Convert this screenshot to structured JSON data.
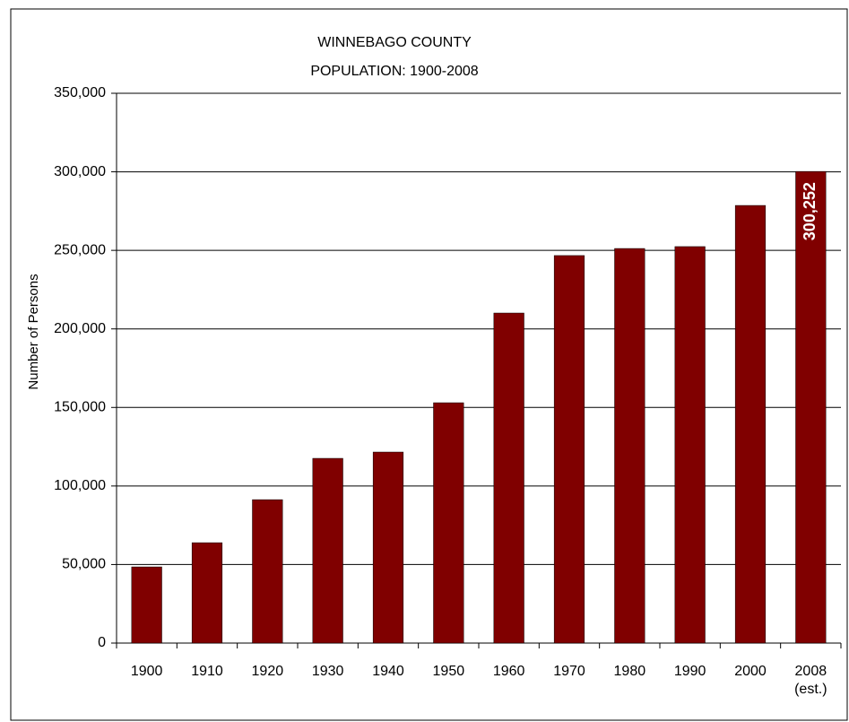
{
  "chart_data": {
    "type": "bar",
    "title": "WINNEBAGO COUNTY",
    "subtitle": "POPULATION:  1900-2008",
    "y_label": "Number of Persons",
    "categories": [
      "1900",
      "1910",
      "1920",
      "1930",
      "1940",
      "1950",
      "1960",
      "1970",
      "1980",
      "1990",
      "2000",
      "2008\n(est.)"
    ],
    "values": [
      48500,
      63900,
      91300,
      117600,
      121600,
      153000,
      210100,
      246700,
      251200,
      252400,
      278600,
      300252
    ],
    "value_labels": [
      null,
      null,
      null,
      null,
      null,
      null,
      null,
      null,
      null,
      null,
      null,
      "300,252"
    ],
    "color": "#800000",
    "ylim": [
      0,
      350000
    ],
    "yticks": [
      0,
      {
        "value": 50000,
        "label": "50,000"
      },
      {
        "value": 100000,
        "label": "100,000"
      },
      {
        "value": 150000,
        "label": "150,000"
      },
      {
        "value": 200000,
        "label": "200,000"
      },
      {
        "value": 250000,
        "label": "250,000"
      },
      {
        "value": 300000,
        "label": "300,000"
      },
      {
        "value": 350000,
        "label": "350,000"
      }
    ],
    "grid": true
  }
}
